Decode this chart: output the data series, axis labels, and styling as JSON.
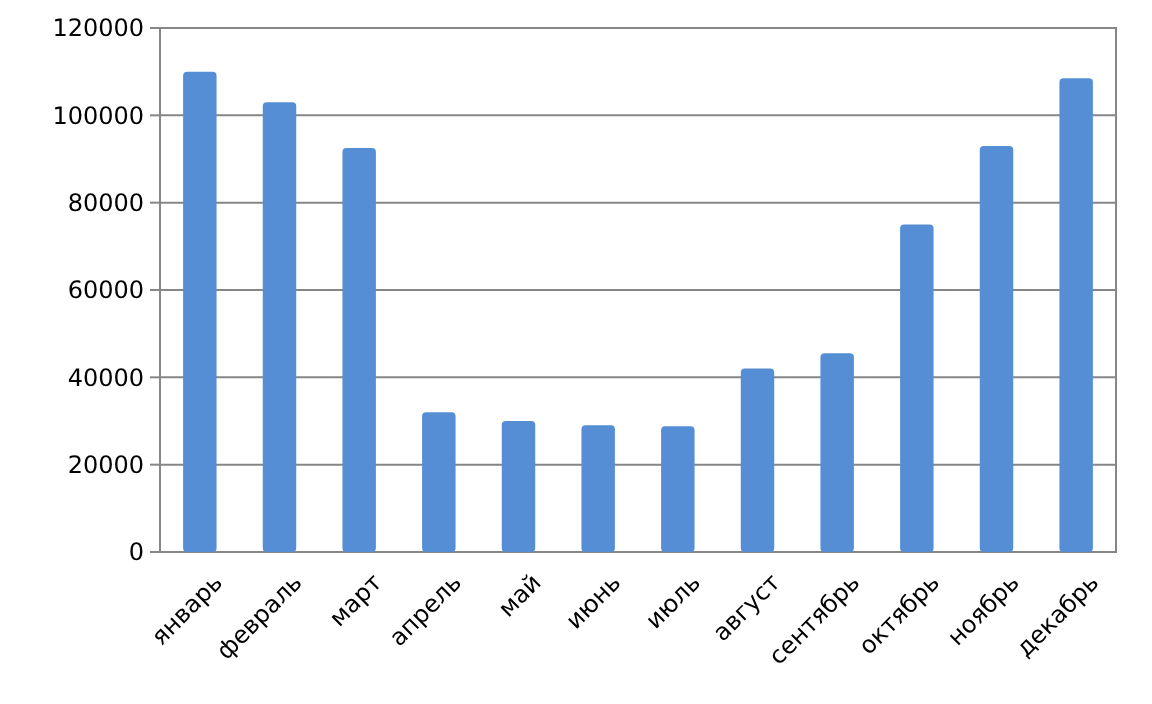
{
  "chart_data": {
    "type": "bar",
    "categories": [
      "январь",
      "февраль",
      "март",
      "апрель",
      "май",
      "июнь",
      "июль",
      "август",
      "сентябрь",
      "октябрь",
      "ноябрь",
      "декабрь"
    ],
    "values": [
      110000,
      103000,
      92500,
      32000,
      30000,
      29000,
      28800,
      42000,
      45500,
      75000,
      93000,
      108500
    ],
    "color": "#558ed5",
    "ylim": [
      0,
      120000
    ],
    "yticks": [
      0,
      20000,
      40000,
      60000,
      80000,
      100000,
      120000
    ],
    "grid": "y"
  }
}
